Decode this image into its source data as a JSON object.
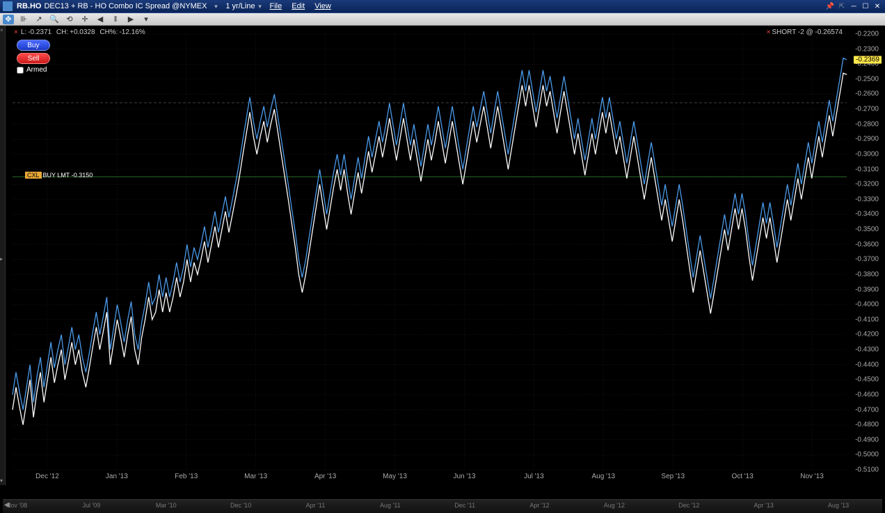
{
  "titlebar": {
    "symbol": "RB.HO",
    "description": "DEC13 + RB - HO Combo IC Spread @NYMEX",
    "timeframe": "1 yr/Line",
    "menus": {
      "file": "File",
      "edit": "Edit",
      "view": "View"
    }
  },
  "info": {
    "low_label": "L:",
    "low": "-0.2371",
    "ch_label": "CH:",
    "ch": "+0.0328",
    "chpct_label": "CH%:",
    "chpct": "-12.16%"
  },
  "position": {
    "label": "SHORT -2 @ -0.26574"
  },
  "buttons": {
    "buy": "Buy",
    "sell": "Sell",
    "armed": "Armed"
  },
  "order": {
    "cxl": "CXL",
    "label": "BUY LMT -0.3150",
    "price": -0.315
  },
  "price_tag": "-0.2369",
  "chart": {
    "type": "line",
    "background": "#000000",
    "grid_color": "#2a2a2a",
    "grid_dash": "1,2",
    "dashed_ref_color": "#555555",
    "dashed_ref_y": -0.26574,
    "order_line_color": "#2a6a2a",
    "series": [
      {
        "name": "bid",
        "color": "#4a9aea",
        "width": 1.3
      },
      {
        "name": "ask",
        "color": "#ffffff",
        "width": 1.3
      }
    ],
    "ylim": [
      -0.51,
      -0.22
    ],
    "ytick_step": 0.01,
    "y_ticks": [
      "-0.2200",
      "-0.2300",
      "-0.2400",
      "-0.2500",
      "-0.2600",
      "-0.2700",
      "-0.2800",
      "-0.2900",
      "-0.3000",
      "-0.3100",
      "-0.3200",
      "-0.3300",
      "-0.3400",
      "-0.3500",
      "-0.3600",
      "-0.3700",
      "-0.3800",
      "-0.3900",
      "-0.4000",
      "-0.4100",
      "-0.4200",
      "-0.4300",
      "-0.4400",
      "-0.4500",
      "-0.4600",
      "-0.4700",
      "-0.4800",
      "-0.4900",
      "-0.5000",
      "-0.5100"
    ],
    "x_ticks": [
      "Dec '12",
      "Jan '13",
      "Feb '13",
      "Mar '13",
      "Apr '13",
      "May '13",
      "Jun '13",
      "Jul '13",
      "Aug '13",
      "Sep '13",
      "Oct '13",
      "Nov '13"
    ],
    "data_bid": [
      -0.46,
      -0.445,
      -0.458,
      -0.47,
      -0.455,
      -0.44,
      -0.465,
      -0.448,
      -0.435,
      -0.455,
      -0.44,
      -0.425,
      -0.442,
      -0.43,
      -0.42,
      -0.44,
      -0.428,
      -0.415,
      -0.43,
      -0.42,
      -0.435,
      -0.445,
      -0.432,
      -0.418,
      -0.405,
      -0.42,
      -0.408,
      -0.395,
      -0.43,
      -0.415,
      -0.4,
      -0.412,
      -0.425,
      -0.41,
      -0.398,
      -0.42,
      -0.43,
      -0.412,
      -0.4,
      -0.385,
      -0.4,
      -0.395,
      -0.38,
      -0.395,
      -0.382,
      -0.395,
      -0.385,
      -0.372,
      -0.385,
      -0.375,
      -0.36,
      -0.375,
      -0.362,
      -0.37,
      -0.36,
      -0.348,
      -0.362,
      -0.35,
      -0.338,
      -0.352,
      -0.34,
      -0.328,
      -0.342,
      -0.33,
      -0.318,
      -0.305,
      -0.29,
      -0.276,
      -0.262,
      -0.278,
      -0.29,
      -0.278,
      -0.268,
      -0.282,
      -0.27,
      -0.26,
      -0.275,
      -0.29,
      -0.305,
      -0.32,
      -0.336,
      -0.352,
      -0.37,
      -0.382,
      -0.37,
      -0.355,
      -0.34,
      -0.325,
      -0.31,
      -0.325,
      -0.34,
      -0.326,
      -0.312,
      -0.3,
      -0.314,
      -0.3,
      -0.316,
      -0.33,
      -0.316,
      -0.302,
      -0.316,
      -0.302,
      -0.288,
      -0.302,
      -0.29,
      -0.278,
      -0.292,
      -0.28,
      -0.266,
      -0.28,
      -0.294,
      -0.28,
      -0.266,
      -0.28,
      -0.294,
      -0.28,
      -0.294,
      -0.308,
      -0.294,
      -0.28,
      -0.294,
      -0.282,
      -0.268,
      -0.282,
      -0.296,
      -0.282,
      -0.268,
      -0.282,
      -0.296,
      -0.31,
      -0.296,
      -0.282,
      -0.268,
      -0.282,
      -0.27,
      -0.258,
      -0.272,
      -0.286,
      -0.272,
      -0.258,
      -0.272,
      -0.286,
      -0.3,
      -0.286,
      -0.272,
      -0.258,
      -0.244,
      -0.258,
      -0.244,
      -0.258,
      -0.272,
      -0.258,
      -0.244,
      -0.258,
      -0.248,
      -0.262,
      -0.276,
      -0.262,
      -0.248,
      -0.262,
      -0.276,
      -0.29,
      -0.276,
      -0.29,
      -0.304,
      -0.29,
      -0.276,
      -0.29,
      -0.276,
      -0.262,
      -0.276,
      -0.262,
      -0.276,
      -0.29,
      -0.278,
      -0.292,
      -0.306,
      -0.292,
      -0.278,
      -0.292,
      -0.306,
      -0.32,
      -0.306,
      -0.292,
      -0.306,
      -0.32,
      -0.334,
      -0.32,
      -0.334,
      -0.348,
      -0.334,
      -0.32,
      -0.334,
      -0.35,
      -0.366,
      -0.382,
      -0.368,
      -0.354,
      -0.368,
      -0.382,
      -0.396,
      -0.382,
      -0.368,
      -0.354,
      -0.34,
      -0.354,
      -0.34,
      -0.326,
      -0.34,
      -0.326,
      -0.34,
      -0.358,
      -0.374,
      -0.36,
      -0.346,
      -0.332,
      -0.346,
      -0.332,
      -0.346,
      -0.362,
      -0.348,
      -0.334,
      -0.32,
      -0.334,
      -0.32,
      -0.306,
      -0.32,
      -0.306,
      -0.292,
      -0.306,
      -0.292,
      -0.278,
      -0.292,
      -0.278,
      -0.264,
      -0.278,
      -0.264,
      -0.25,
      -0.236,
      -0.237
    ],
    "data_ask_offset": 0.01
  },
  "thumb": {
    "ticks": [
      "Nov '08",
      "Jul '09",
      "Mar '10",
      "Dec '10",
      "Apr '11",
      "Aug '11",
      "Dec '11",
      "Apr '12",
      "Aug '12",
      "Dec '12",
      "Apr '13",
      "Aug '13"
    ]
  }
}
